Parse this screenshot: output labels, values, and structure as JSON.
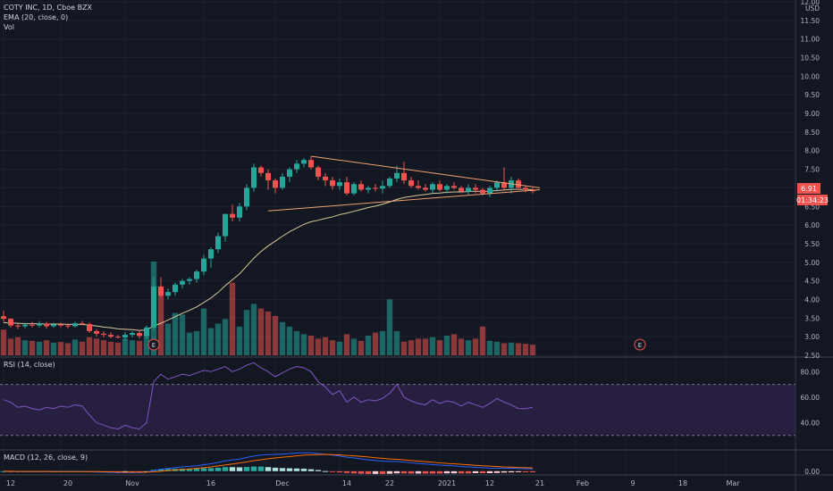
{
  "legend": {
    "symbol_line": "COTY INC, 1D, Cboe BZX",
    "ema_line": "EMA (20, close, 0)",
    "vol_line": "Vol"
  },
  "panes": {
    "rsi_label": "RSI (14, close)",
    "macd_label": "MACD (12, 26, close, 9)"
  },
  "price_axis": {
    "currency": "USD",
    "last_price": "6.91",
    "countdown": "01:34:23"
  },
  "colors": {
    "background": "#131722",
    "up": "#26a69a",
    "down": "#ef5350",
    "ema": "#d8c99b",
    "trendline": "#f0a070",
    "rsi_line": "#7e57c2",
    "rsi_band": "#2a1f44",
    "macd_line": "#2962ff",
    "signal_line": "#ff6d00"
  },
  "chart_data": [
    {
      "type": "candlestick",
      "title": "COTY INC, 1D, Cboe BZX",
      "ylabel": "USD",
      "ylim": [
        2.5,
        12.0
      ],
      "y_ticks": [
        "2.50",
        "3.00",
        "3.50",
        "4.00",
        "4.50",
        "5.00",
        "5.50",
        "6.00",
        "6.50",
        "7.00",
        "7.50",
        "8.00",
        "8.50",
        "9.00",
        "9.50",
        "10.00",
        "10.50",
        "11.00",
        "11.50",
        "12.00"
      ],
      "x_ticks": [
        "12",
        "20",
        "Nov",
        "16",
        "Dec",
        "14",
        "22",
        "2021",
        "12",
        "21",
        "Feb",
        "9",
        "18",
        "Mar"
      ],
      "x_tick_bar_index": [
        0,
        8,
        17,
        28,
        38,
        47,
        53,
        61,
        67,
        74,
        80,
        87,
        94,
        101
      ],
      "earnings_markers": [
        {
          "label": "E",
          "bar_index": 21
        },
        {
          "label": "E",
          "bar_index": 89
        }
      ],
      "ohlc": [
        [
          3.55,
          3.7,
          3.4,
          3.48
        ],
        [
          3.48,
          3.5,
          3.25,
          3.3
        ],
        [
          3.3,
          3.35,
          3.2,
          3.28
        ],
        [
          3.28,
          3.38,
          3.22,
          3.32
        ],
        [
          3.32,
          3.4,
          3.25,
          3.3
        ],
        [
          3.3,
          3.42,
          3.25,
          3.35
        ],
        [
          3.35,
          3.4,
          3.22,
          3.28
        ],
        [
          3.28,
          3.38,
          3.24,
          3.33
        ],
        [
          3.33,
          3.38,
          3.25,
          3.3
        ],
        [
          3.3,
          3.36,
          3.22,
          3.28
        ],
        [
          3.28,
          3.4,
          3.25,
          3.36
        ],
        [
          3.36,
          3.42,
          3.3,
          3.34
        ],
        [
          3.34,
          3.38,
          3.1,
          3.15
        ],
        [
          3.15,
          3.2,
          3.0,
          3.08
        ],
        [
          3.08,
          3.15,
          2.98,
          3.05
        ],
        [
          3.05,
          3.12,
          2.95,
          3.0
        ],
        [
          3.0,
          3.05,
          2.95,
          2.98
        ],
        [
          2.98,
          3.12,
          2.9,
          3.05
        ],
        [
          3.05,
          3.15,
          2.98,
          3.1
        ],
        [
          3.1,
          3.15,
          2.95,
          3.02
        ],
        [
          3.02,
          3.3,
          2.95,
          3.25
        ],
        [
          3.25,
          4.6,
          3.2,
          4.35
        ],
        [
          4.35,
          4.6,
          4.05,
          4.1
        ],
        [
          4.1,
          4.3,
          4.0,
          4.2
        ],
        [
          4.2,
          4.45,
          4.1,
          4.4
        ],
        [
          4.4,
          4.55,
          4.3,
          4.5
        ],
        [
          4.5,
          4.6,
          4.4,
          4.55
        ],
        [
          4.55,
          4.8,
          4.45,
          4.75
        ],
        [
          4.75,
          5.2,
          4.65,
          5.1
        ],
        [
          5.1,
          5.4,
          4.85,
          5.35
        ],
        [
          5.35,
          5.8,
          5.25,
          5.7
        ],
        [
          5.7,
          6.3,
          5.55,
          6.3
        ],
        [
          6.3,
          6.55,
          6.1,
          6.2
        ],
        [
          6.2,
          6.6,
          6.1,
          6.5
        ],
        [
          6.5,
          7.1,
          6.4,
          7.0
        ],
        [
          7.0,
          7.65,
          6.9,
          7.55
        ],
        [
          7.55,
          7.6,
          7.3,
          7.4
        ],
        [
          7.4,
          7.5,
          6.95,
          7.2
        ],
        [
          7.2,
          7.25,
          6.85,
          7.0
        ],
        [
          7.0,
          7.4,
          6.95,
          7.3
        ],
        [
          7.3,
          7.55,
          7.15,
          7.5
        ],
        [
          7.5,
          7.75,
          7.4,
          7.65
        ],
        [
          7.65,
          7.8,
          7.55,
          7.75
        ],
        [
          7.75,
          7.85,
          7.5,
          7.55
        ],
        [
          7.55,
          7.6,
          7.2,
          7.3
        ],
        [
          7.3,
          7.4,
          7.05,
          7.2
        ],
        [
          7.2,
          7.3,
          6.95,
          7.05
        ],
        [
          7.05,
          7.25,
          6.95,
          7.15
        ],
        [
          7.15,
          7.3,
          6.8,
          6.85
        ],
        [
          6.85,
          7.15,
          6.8,
          7.1
        ],
        [
          7.1,
          7.2,
          6.9,
          6.95
        ],
        [
          6.95,
          7.05,
          6.85,
          7.0
        ],
        [
          7.0,
          7.1,
          6.9,
          6.98
        ],
        [
          6.98,
          7.2,
          6.85,
          7.05
        ],
        [
          7.05,
          7.3,
          7.0,
          7.25
        ],
        [
          7.25,
          7.6,
          7.15,
          7.4
        ],
        [
          7.4,
          7.7,
          7.1,
          7.2
        ],
        [
          7.2,
          7.3,
          7.0,
          7.05
        ],
        [
          7.05,
          7.2,
          6.95,
          7.0
        ],
        [
          7.0,
          7.1,
          6.9,
          6.95
        ],
        [
          6.95,
          7.15,
          6.85,
          7.1
        ],
        [
          7.1,
          7.2,
          6.9,
          6.95
        ],
        [
          6.95,
          7.1,
          6.85,
          7.05
        ],
        [
          7.05,
          7.15,
          6.95,
          7.0
        ],
        [
          7.0,
          7.05,
          6.85,
          6.9
        ],
        [
          6.9,
          7.1,
          6.8,
          7.0
        ],
        [
          7.0,
          7.1,
          6.85,
          6.95
        ],
        [
          6.95,
          7.0,
          6.8,
          6.85
        ],
        [
          6.85,
          7.05,
          6.75,
          7.0
        ],
        [
          7.0,
          7.2,
          6.9,
          7.15
        ],
        [
          7.15,
          7.55,
          6.95,
          7.0
        ],
        [
          7.0,
          7.3,
          6.85,
          7.2
        ],
        [
          7.2,
          7.25,
          6.95,
          7.0
        ],
        [
          7.0,
          7.05,
          6.88,
          6.95
        ],
        [
          6.95,
          7.0,
          6.85,
          6.91
        ]
      ],
      "volume": [
        0.85,
        0.55,
        0.6,
        0.5,
        0.48,
        0.45,
        0.5,
        0.42,
        0.44,
        0.4,
        0.52,
        0.45,
        0.6,
        0.55,
        0.5,
        0.45,
        0.42,
        0.55,
        0.5,
        0.48,
        0.7,
        3.1,
        2.25,
        1.05,
        1.4,
        1.35,
        0.75,
        0.8,
        1.55,
        0.9,
        1.05,
        1.2,
        2.4,
        0.95,
        1.5,
        1.7,
        1.55,
        1.45,
        1.3,
        1.1,
        0.95,
        0.8,
        0.7,
        0.65,
        0.55,
        0.6,
        0.5,
        0.45,
        0.7,
        0.55,
        0.48,
        0.65,
        0.75,
        0.8,
        1.85,
        0.8,
        0.45,
        0.5,
        0.55,
        0.55,
        0.6,
        0.5,
        0.65,
        0.7,
        0.55,
        0.5,
        0.55,
        0.95,
        0.48,
        0.45,
        0.4,
        0.42,
        0.4,
        0.38,
        0.35
      ],
      "ema_20": [
        3.38,
        3.37,
        3.36,
        3.35,
        3.35,
        3.35,
        3.34,
        3.34,
        3.34,
        3.33,
        3.33,
        3.33,
        3.31,
        3.29,
        3.26,
        3.24,
        3.21,
        3.2,
        3.19,
        3.17,
        3.18,
        3.29,
        3.36,
        3.45,
        3.54,
        3.63,
        3.71,
        3.8,
        3.92,
        4.04,
        4.19,
        4.37,
        4.53,
        4.69,
        4.9,
        5.11,
        5.29,
        5.44,
        5.57,
        5.7,
        5.82,
        5.92,
        6.02,
        6.09,
        6.13,
        6.18,
        6.22,
        6.28,
        6.32,
        6.37,
        6.42,
        6.47,
        6.51,
        6.56,
        6.62,
        6.69,
        6.74,
        6.77,
        6.8,
        6.82,
        6.85,
        6.86,
        6.88,
        6.89,
        6.89,
        6.9,
        6.91,
        6.9,
        6.91,
        6.93,
        6.94,
        6.96,
        6.96,
        6.96,
        6.95
      ],
      "trendlines": [
        {
          "from": [
            43,
            7.85
          ],
          "to": [
            75,
            7.0
          ]
        },
        {
          "from": [
            37,
            6.38
          ],
          "to": [
            75,
            6.95
          ]
        }
      ]
    },
    {
      "type": "line",
      "title": "RSI (14, close)",
      "ylim": [
        20,
        90
      ],
      "y_ticks": [
        "40.00",
        "60.00",
        "80.00"
      ],
      "band": [
        30,
        70
      ],
      "values": [
        58,
        56,
        52,
        53,
        51,
        50,
        52,
        51,
        53,
        52,
        54,
        53,
        46,
        40,
        38,
        36,
        35,
        38,
        36,
        35,
        40,
        72,
        78,
        74,
        76,
        78,
        77,
        79,
        81,
        80,
        82,
        84,
        80,
        82,
        85,
        87,
        83,
        80,
        76,
        79,
        82,
        84,
        83,
        80,
        72,
        68,
        62,
        65,
        56,
        60,
        56,
        58,
        57,
        59,
        63,
        70,
        60,
        57,
        55,
        54,
        58,
        55,
        57,
        56,
        53,
        56,
        54,
        52,
        55,
        59,
        56,
        54,
        51,
        51,
        52
      ]
    },
    {
      "type": "macd",
      "title": "MACD (12, 26, close, 9)",
      "y_ticks": [
        "0.00"
      ],
      "macd": [
        0.0,
        -0.01,
        -0.02,
        -0.02,
        -0.02,
        -0.02,
        -0.02,
        -0.02,
        -0.02,
        -0.02,
        -0.02,
        -0.02,
        -0.03,
        -0.04,
        -0.05,
        -0.06,
        -0.07,
        -0.07,
        -0.07,
        -0.07,
        -0.05,
        0.04,
        0.1,
        0.14,
        0.18,
        0.22,
        0.25,
        0.28,
        0.33,
        0.38,
        0.45,
        0.53,
        0.58,
        0.62,
        0.7,
        0.78,
        0.83,
        0.85,
        0.86,
        0.88,
        0.9,
        0.93,
        0.95,
        0.94,
        0.91,
        0.87,
        0.82,
        0.78,
        0.72,
        0.68,
        0.63,
        0.59,
        0.55,
        0.52,
        0.5,
        0.5,
        0.47,
        0.43,
        0.4,
        0.37,
        0.34,
        0.31,
        0.29,
        0.27,
        0.24,
        0.22,
        0.2,
        0.18,
        0.16,
        0.15,
        0.15,
        0.15,
        0.14,
        0.13,
        0.12
      ],
      "signal": [
        0.0,
        0.0,
        -0.01,
        -0.01,
        -0.01,
        -0.01,
        -0.01,
        -0.02,
        -0.02,
        -0.02,
        -0.02,
        -0.02,
        -0.02,
        -0.02,
        -0.03,
        -0.03,
        -0.04,
        -0.05,
        -0.05,
        -0.05,
        -0.05,
        -0.03,
        0.0,
        0.03,
        0.06,
        0.09,
        0.12,
        0.15,
        0.18,
        0.22,
        0.27,
        0.32,
        0.37,
        0.42,
        0.48,
        0.54,
        0.59,
        0.64,
        0.68,
        0.72,
        0.75,
        0.79,
        0.82,
        0.84,
        0.85,
        0.86,
        0.85,
        0.84,
        0.81,
        0.79,
        0.76,
        0.73,
        0.69,
        0.66,
        0.63,
        0.61,
        0.58,
        0.55,
        0.52,
        0.49,
        0.46,
        0.43,
        0.4,
        0.38,
        0.35,
        0.33,
        0.3,
        0.28,
        0.26,
        0.24,
        0.22,
        0.21,
        0.19,
        0.18,
        0.17
      ]
    }
  ]
}
